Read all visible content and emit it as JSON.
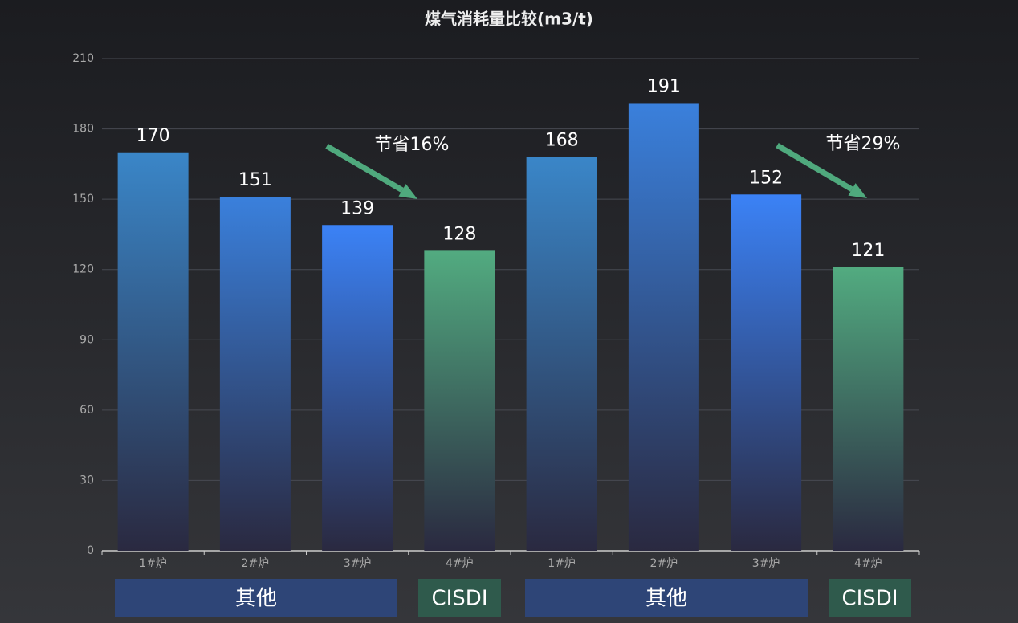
{
  "chart_data": {
    "type": "bar",
    "title": "煤气消耗量比较(m3/t)",
    "categories": [
      "1#炉",
      "2#炉",
      "3#炉",
      "4#炉",
      "1#炉",
      "2#炉",
      "3#炉",
      "4#炉"
    ],
    "values": [
      170,
      151,
      139,
      128,
      168,
      191,
      152,
      121
    ],
    "colors": [
      "#3a86c8",
      "#3a80dc",
      "#3b82f6",
      "#52ab80",
      "#3a86c8",
      "#3a80dc",
      "#3b82f6",
      "#52ab80"
    ],
    "ylim": [
      0,
      210
    ],
    "yticks": [
      0,
      30,
      60,
      90,
      120,
      150,
      180,
      210
    ],
    "grid": true,
    "annotations": [
      "节省16%",
      "节省29%"
    ],
    "groups": [
      {
        "label": "其他",
        "color": "#2e4577"
      },
      {
        "label": "CISDI",
        "color": "#2f5a4c"
      },
      {
        "label": "其他",
        "color": "#2e4577"
      },
      {
        "label": "CISDI",
        "color": "#2f5a4c"
      }
    ]
  }
}
